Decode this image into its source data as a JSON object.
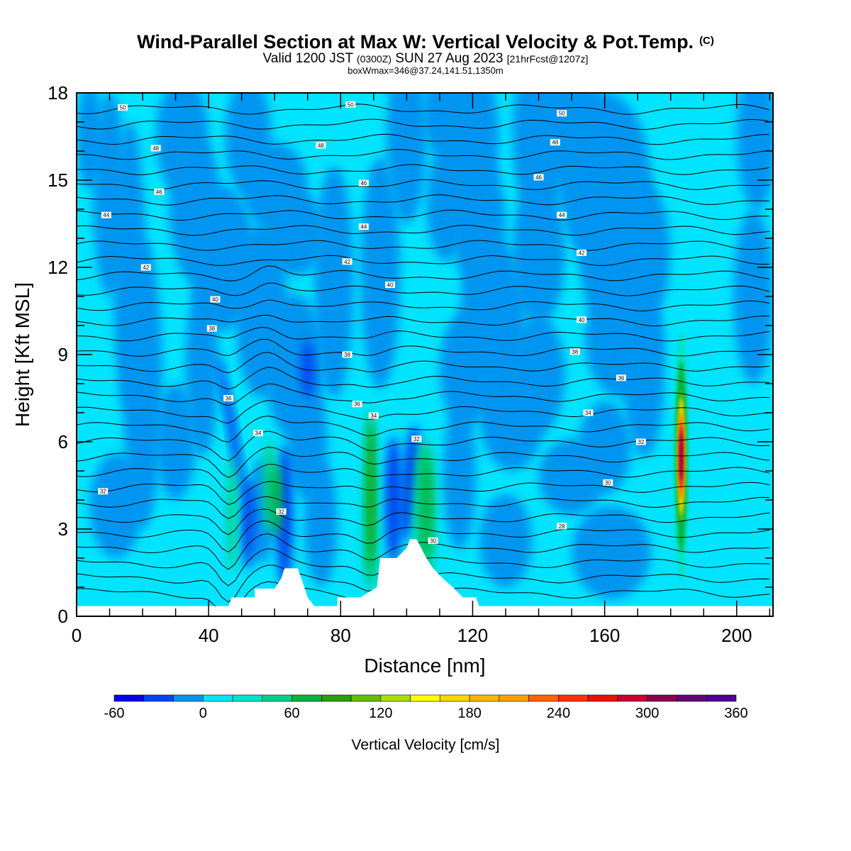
{
  "header": {
    "title": "Wind-Parallel Section at Max W: Vertical Velocity & Pot.Temp.",
    "copyright": "(C)",
    "valid_prefix": "Valid 1200 JST",
    "valid_z": "(0300Z)",
    "valid_date": "SUN 27 Aug 2023",
    "forecast": "[21hrFcst@1207z]",
    "box_info": "boxWmax=346@37.24,141.51,1350m"
  },
  "colors": {
    "background": "#ffffff",
    "base_field": "#00e4ff"
  },
  "chart_data": {
    "type": "heatmap",
    "xlabel": "Distance [nm]",
    "ylabel": "Height [Kft MSL]",
    "xlim": [
      0,
      211
    ],
    "ylim": [
      0,
      18
    ],
    "xticks": [
      0,
      40,
      80,
      120,
      160,
      200
    ],
    "yticks": [
      0,
      3,
      6,
      9,
      12,
      15,
      18
    ],
    "colorbar": {
      "title": "Vertical Velocity [cm/s]",
      "levels": [
        -60,
        -40,
        -20,
        0,
        20,
        40,
        60,
        80,
        100,
        120,
        140,
        160,
        180,
        200,
        220,
        240,
        260,
        280,
        300,
        320,
        340,
        360
      ],
      "colors": [
        "#0a00e6",
        "#0046f0",
        "#0095f0",
        "#00e4ff",
        "#00e4c8",
        "#00d28c",
        "#00b43c",
        "#28a000",
        "#64be00",
        "#aade00",
        "#ffff00",
        "#ffd700",
        "#ffb400",
        "#ffa000",
        "#ff6400",
        "#ff3200",
        "#e61400",
        "#c80032",
        "#8c0050",
        "#640078",
        "#500096"
      ],
      "tick_labels": [
        "-60",
        "0",
        "60",
        "120",
        "180",
        "240",
        "300",
        "360"
      ]
    },
    "theta_levels": [
      30,
      32,
      34,
      36,
      38,
      40,
      42,
      44,
      46,
      48,
      50
    ],
    "contour_labels": [
      {
        "text": "50",
        "x": 14,
        "y": 17.5
      },
      {
        "text": "50",
        "x": 83,
        "y": 17.6
      },
      {
        "text": "50",
        "x": 147,
        "y": 17.3
      },
      {
        "text": "48",
        "x": 24,
        "y": 16.1
      },
      {
        "text": "48",
        "x": 74,
        "y": 16.2
      },
      {
        "text": "48",
        "x": 145,
        "y": 16.3
      },
      {
        "text": "46",
        "x": 25,
        "y": 14.6
      },
      {
        "text": "46",
        "x": 87,
        "y": 14.9
      },
      {
        "text": "46",
        "x": 140,
        "y": 15.1
      },
      {
        "text": "44",
        "x": 9,
        "y": 13.8
      },
      {
        "text": "44",
        "x": 87,
        "y": 13.4
      },
      {
        "text": "44",
        "x": 147,
        "y": 13.8
      },
      {
        "text": "42",
        "x": 21,
        "y": 12.0
      },
      {
        "text": "42",
        "x": 82,
        "y": 12.2
      },
      {
        "text": "42",
        "x": 153,
        "y": 12.5
      },
      {
        "text": "40",
        "x": 42,
        "y": 10.9
      },
      {
        "text": "40",
        "x": 95,
        "y": 11.4
      },
      {
        "text": "40",
        "x": 153,
        "y": 10.2
      },
      {
        "text": "38",
        "x": 41,
        "y": 9.9
      },
      {
        "text": "38",
        "x": 82,
        "y": 9.0
      },
      {
        "text": "38",
        "x": 151,
        "y": 9.1
      },
      {
        "text": "36",
        "x": 46,
        "y": 7.5
      },
      {
        "text": "36",
        "x": 85,
        "y": 7.3
      },
      {
        "text": "36",
        "x": 165,
        "y": 8.2
      },
      {
        "text": "34",
        "x": 55,
        "y": 6.3
      },
      {
        "text": "34",
        "x": 90,
        "y": 6.9
      },
      {
        "text": "34",
        "x": 155,
        "y": 7.0
      },
      {
        "text": "32",
        "x": 8,
        "y": 4.3
      },
      {
        "text": "32",
        "x": 62,
        "y": 3.6
      },
      {
        "text": "32",
        "x": 103,
        "y": 6.1
      },
      {
        "text": "32",
        "x": 171,
        "y": 6.0
      },
      {
        "text": "30",
        "x": 108,
        "y": 2.6
      },
      {
        "text": "30",
        "x": 161,
        "y": 4.6
      },
      {
        "text": "28",
        "x": 147,
        "y": 3.1
      }
    ],
    "terrain": [
      {
        "x": 0,
        "h": 0.35
      },
      {
        "x": 46,
        "h": 0.35
      },
      {
        "x": 47,
        "h": 0.65
      },
      {
        "x": 54,
        "h": 0.65
      },
      {
        "x": 54,
        "h": 0.95
      },
      {
        "x": 60,
        "h": 0.95
      },
      {
        "x": 62,
        "h": 1.3
      },
      {
        "x": 63,
        "h": 1.65
      },
      {
        "x": 67,
        "h": 1.65
      },
      {
        "x": 69,
        "h": 1.0
      },
      {
        "x": 70,
        "h": 0.65
      },
      {
        "x": 72,
        "h": 0.35
      },
      {
        "x": 79,
        "h": 0.35
      },
      {
        "x": 79,
        "h": 0.65
      },
      {
        "x": 86,
        "h": 0.65
      },
      {
        "x": 91,
        "h": 1.0
      },
      {
        "x": 92,
        "h": 2.0
      },
      {
        "x": 97,
        "h": 2.0
      },
      {
        "x": 100,
        "h": 2.35
      },
      {
        "x": 101,
        "h": 2.65
      },
      {
        "x": 103,
        "h": 2.65
      },
      {
        "x": 106,
        "h": 2.0
      },
      {
        "x": 108,
        "h": 1.65
      },
      {
        "x": 111,
        "h": 1.3
      },
      {
        "x": 114,
        "h": 1.0
      },
      {
        "x": 117,
        "h": 0.65
      },
      {
        "x": 121,
        "h": 0.65
      },
      {
        "x": 122,
        "h": 0.35
      },
      {
        "x": 211,
        "h": 0.35
      }
    ]
  }
}
